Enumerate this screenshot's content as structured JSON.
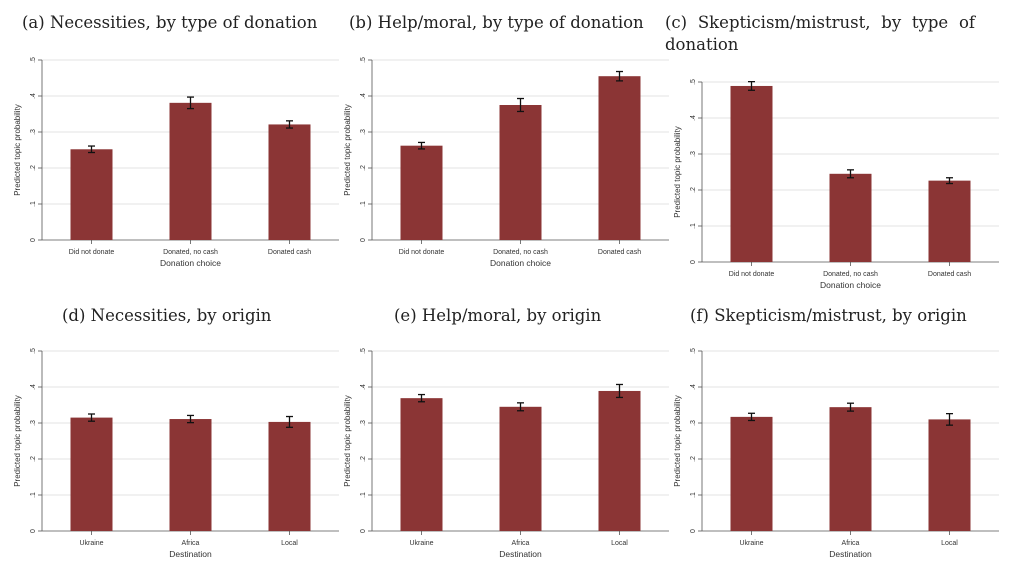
{
  "colors": {
    "bar": "#8b3535",
    "grid": "#e3e3e3",
    "axis": "#555555",
    "errorbar": "#111111"
  },
  "chart_data": [
    {
      "id": "a",
      "type": "bar",
      "title": "(a) Necessities, by type of donation",
      "xlabel": "Donation choice",
      "ylabel": "Predicted topic probability",
      "categories": [
        "Did not donate",
        "Donated, no cash",
        "Donated cash"
      ],
      "values": [
        0.252,
        0.381,
        0.321
      ],
      "ci_low": [
        0.243,
        0.365,
        0.311
      ],
      "ci_high": [
        0.261,
        0.397,
        0.331
      ],
      "ylim": [
        0,
        0.5
      ],
      "yticks": [
        0,
        0.1,
        0.2,
        0.3,
        0.4,
        0.5
      ],
      "ytick_labels": [
        "0",
        ".1",
        ".2",
        ".3",
        ".4",
        ".5"
      ],
      "grid": true
    },
    {
      "id": "b",
      "type": "bar",
      "title": "(b) Help/moral, by type of donation",
      "xlabel": "Donation choice",
      "ylabel": "Predicted topic probability",
      "categories": [
        "Did not donate",
        "Donated, no cash",
        "Donated cash"
      ],
      "values": [
        0.262,
        0.375,
        0.455
      ],
      "ci_low": [
        0.253,
        0.357,
        0.442
      ],
      "ci_high": [
        0.271,
        0.393,
        0.468
      ],
      "ylim": [
        0,
        0.5
      ],
      "yticks": [
        0,
        0.1,
        0.2,
        0.3,
        0.4,
        0.5
      ],
      "ytick_labels": [
        "0",
        ".1",
        ".2",
        ".3",
        ".4",
        ".5"
      ],
      "grid": true
    },
    {
      "id": "c",
      "type": "bar",
      "title": "(c) Skepticism/mistrust, by type of donation",
      "xlabel": "Donation choice",
      "ylabel": "Predicted topic probability",
      "categories": [
        "Did not donate",
        "Donated, no cash",
        "Donated cash"
      ],
      "values": [
        0.489,
        0.245,
        0.226
      ],
      "ci_low": [
        0.477,
        0.234,
        0.218
      ],
      "ci_high": [
        0.501,
        0.256,
        0.234
      ],
      "ylim": [
        0,
        0.5
      ],
      "yticks": [
        0,
        0.1,
        0.2,
        0.3,
        0.4,
        0.5
      ],
      "ytick_labels": [
        "0",
        ".1",
        ".2",
        ".3",
        ".4",
        ".5"
      ],
      "grid": true
    },
    {
      "id": "d",
      "type": "bar",
      "title": "(d) Necessities, by origin",
      "xlabel": "Destination",
      "ylabel": "Predicted topic probability",
      "categories": [
        "Ukraine",
        "Africa",
        "Local"
      ],
      "values": [
        0.315,
        0.311,
        0.303
      ],
      "ci_low": [
        0.305,
        0.301,
        0.288
      ],
      "ci_high": [
        0.325,
        0.321,
        0.318
      ],
      "ylim": [
        0,
        0.5
      ],
      "yticks": [
        0,
        0.1,
        0.2,
        0.3,
        0.4,
        0.5
      ],
      "ytick_labels": [
        "0",
        ".1",
        ".2",
        ".3",
        ".4",
        ".5"
      ],
      "grid": true
    },
    {
      "id": "e",
      "type": "bar",
      "title": "(e) Help/moral, by origin",
      "xlabel": "Destination",
      "ylabel": "Predicted topic probability",
      "categories": [
        "Ukraine",
        "Africa",
        "Local"
      ],
      "values": [
        0.369,
        0.345,
        0.389
      ],
      "ci_low": [
        0.359,
        0.334,
        0.371
      ],
      "ci_high": [
        0.379,
        0.356,
        0.407
      ],
      "ylim": [
        0,
        0.5
      ],
      "yticks": [
        0,
        0.1,
        0.2,
        0.3,
        0.4,
        0.5
      ],
      "ytick_labels": [
        "0",
        ".1",
        ".2",
        ".3",
        ".4",
        ".5"
      ],
      "grid": true
    },
    {
      "id": "f",
      "type": "bar",
      "title": "(f) Skepticism/mistrust, by origin",
      "xlabel": "Destination",
      "ylabel": "Predicted topic probability",
      "categories": [
        "Ukraine",
        "Africa",
        "Local"
      ],
      "values": [
        0.317,
        0.344,
        0.31
      ],
      "ci_low": [
        0.307,
        0.333,
        0.294
      ],
      "ci_high": [
        0.327,
        0.355,
        0.326
      ],
      "ylim": [
        0,
        0.5
      ],
      "yticks": [
        0,
        0.1,
        0.2,
        0.3,
        0.4,
        0.5
      ],
      "ytick_labels": [
        "0",
        ".1",
        ".2",
        ".3",
        ".4",
        ".5"
      ],
      "grid": true
    }
  ]
}
